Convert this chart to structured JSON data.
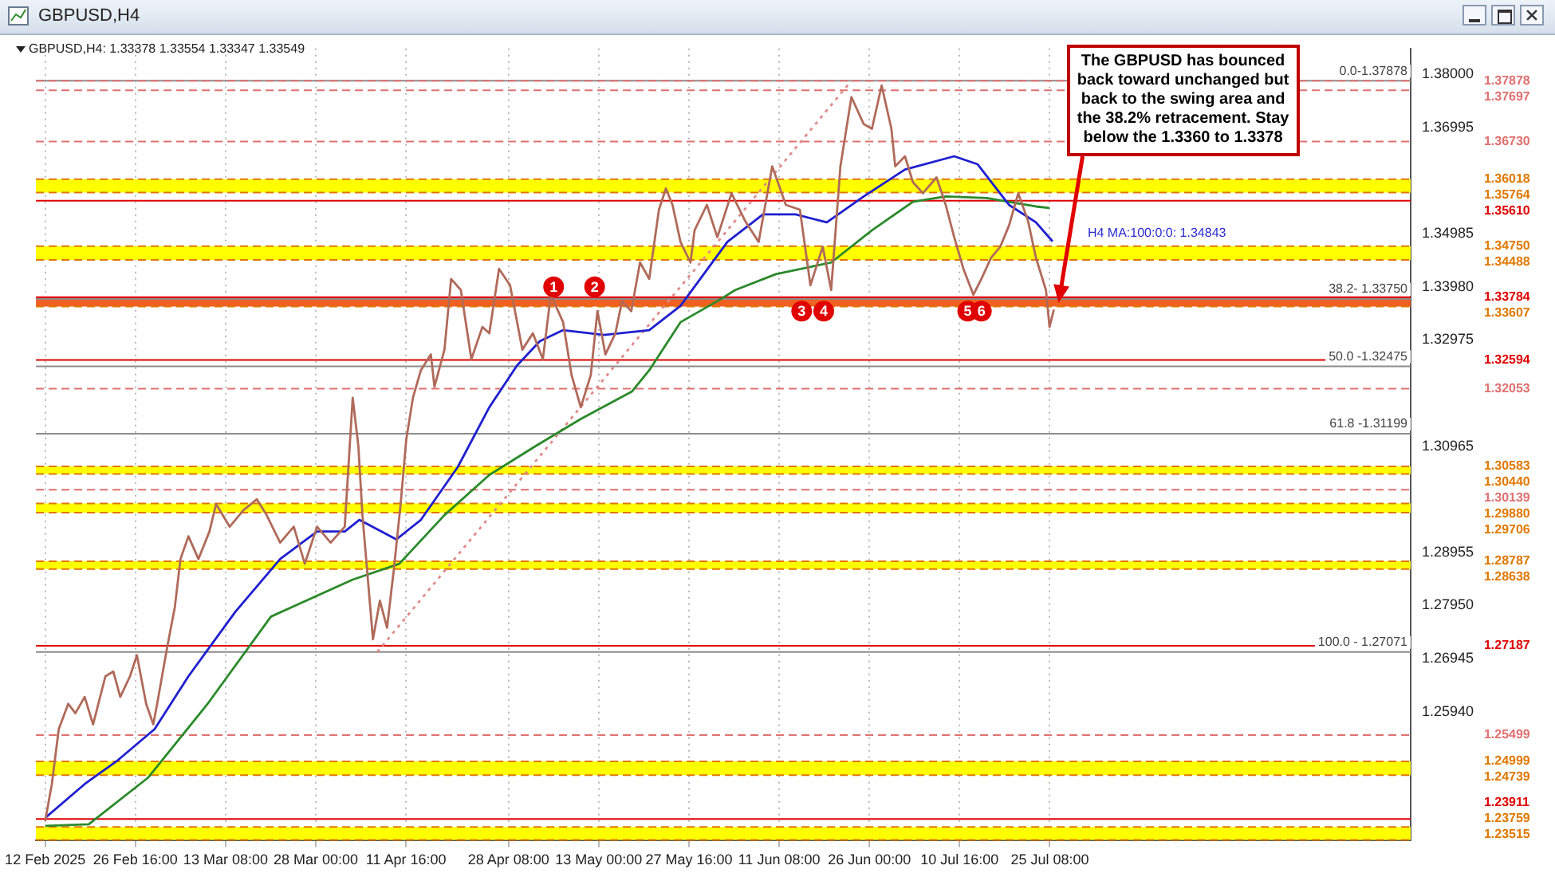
{
  "chart_data": {
    "type": "line",
    "title": "GBPUSD,H4",
    "subtitle": "GBPUSD,H4: 1.33378 1.33554 1.33347 1.33549",
    "marker": "none",
    "grid": "x",
    "legend": false,
    "xlim": [
      "2025-02-10T12:00",
      "2025-09-22T00:00"
    ],
    "xticks": [
      {
        "value": "2025-02-12T00:00",
        "label": "12 Feb 2025"
      },
      {
        "value": "2025-02-26T16:00",
        "label": "26 Feb 16:00"
      },
      {
        "value": "2025-03-13T08:00",
        "label": "13 Mar 08:00"
      },
      {
        "value": "2025-03-28T00:00",
        "label": "28 Mar 00:00"
      },
      {
        "value": "2025-04-11T16:00",
        "label": "11 Apr 16:00"
      },
      {
        "value": "2025-04-28T08:00",
        "label": "28 Apr 08:00"
      },
      {
        "value": "2025-05-13T00:00",
        "label": "13 May 00:00"
      },
      {
        "value": "2025-05-27T16:00",
        "label": "27 May 16:00"
      },
      {
        "value": "2025-06-11T08:00",
        "label": "11 Jun 08:00"
      },
      {
        "value": "2025-06-26T00:00",
        "label": "26 Jun 00:00"
      },
      {
        "value": "2025-07-10T16:00",
        "label": "10 Jul 16:00"
      },
      {
        "value": "2025-07-25T08:00",
        "label": "25 Jul 08:00"
      }
    ],
    "ylim": [
      1.235,
      1.3849
    ],
    "yticks": [
      {
        "value": 1.38,
        "label": "1.38000"
      },
      {
        "value": 1.36995,
        "label": "1.36995"
      },
      {
        "value": 1.34985,
        "label": "1.34985"
      },
      {
        "value": 1.3398,
        "label": "1.33980"
      },
      {
        "value": 1.32975,
        "label": "1.32975"
      },
      {
        "value": 1.30965,
        "label": "1.30965"
      },
      {
        "value": 1.28955,
        "label": "1.28955"
      },
      {
        "value": 1.2795,
        "label": "1.27950"
      },
      {
        "value": 1.26945,
        "label": "1.26945"
      },
      {
        "value": 1.2594,
        "label": "1.25940"
      }
    ],
    "series": [
      {
        "color": "#b06a5a",
        "x": [
          "2025-02-12T00:00",
          "2025-02-13T02:00",
          "2025-02-14T05:00",
          "2025-02-15T18:00",
          "2025-02-16T22:00",
          "2025-02-18T10:00",
          "2025-02-19T19:00",
          "2025-02-21T19:00",
          "2025-02-23T02:00",
          "2025-02-24T05:00",
          "2025-02-25T19:00",
          "2025-02-26T22:00",
          "2025-02-28T10:00",
          "2025-03-01T14:00",
          "2025-03-02T05:00",
          "2025-03-03T19:00",
          "2025-03-05T02:00",
          "2025-03-06T00:00",
          "2025-03-07T07:00",
          "2025-03-08T22:00",
          "2025-03-10T17:00",
          "2025-03-11T19:00",
          "2025-03-14T00:00",
          "2025-03-16T05:00",
          "2025-03-18T10:00",
          "2025-03-20T00:00",
          "2025-03-22T05:00",
          "2025-03-24T10:00",
          "2025-03-26T05:00",
          "2025-03-28T05:00",
          "2025-03-30T10:00",
          "2025-04-01T17:00",
          "2025-04-03T00:00",
          "2025-04-03T22:00",
          "2025-04-04T14:00",
          "2025-04-06T07:00",
          "2025-04-07T10:00",
          "2025-04-08T14:00",
          "2025-04-09T17:00",
          "2025-04-10T19:00",
          "2025-04-11T17:00",
          "2025-04-12T19:00",
          "2025-04-14T02:00",
          "2025-04-15T17:00",
          "2025-04-16T07:00",
          "2025-04-17T22:00",
          "2025-04-19T00:00",
          "2025-04-20T14:00",
          "2025-04-22T07:00",
          "2025-04-24T02:00",
          "2025-04-25T05:00",
          "2025-04-26T19:00",
          "2025-04-28T14:00",
          "2025-04-30T14:00",
          "2025-05-02T07:00",
          "2025-05-03T22:00",
          "2025-05-05T05:00",
          "2025-05-07T05:00",
          "2025-05-08T14:00",
          "2025-05-10T02:00",
          "2025-05-11T17:00",
          "2025-05-12T19:00",
          "2025-05-14T02:00",
          "2025-05-15T17:00",
          "2025-05-16T19:00",
          "2025-05-18T07:00",
          "2025-05-19T17:00",
          "2025-05-21T05:00",
          "2025-05-22T19:00",
          "2025-05-23T22:00",
          "2025-05-25T00:00",
          "2025-05-26T07:00",
          "2025-05-27T22:00",
          "2025-05-28T14:00",
          "2025-05-30T14:00",
          "2025-05-31T22:00",
          "2025-06-01T07:00",
          "2025-06-03T14:00",
          "2025-06-05T19:00",
          "2025-06-08T00:00",
          "2025-06-10T05:00",
          "2025-06-12T10:00",
          "2025-06-14T17:00",
          "2025-06-16T10:00",
          "2025-06-18T10:00",
          "2025-06-19T19:00",
          "2025-06-21T07:00",
          "2025-06-23T02:00",
          "2025-06-25T02:00",
          "2025-06-26T10:00",
          "2025-06-28T00:00",
          "2025-06-29T14:00",
          "2025-06-30T05:00",
          "2025-07-01T19:00",
          "2025-07-03T02:00",
          "2025-07-04T17:00",
          "2025-07-06T22:00",
          "2025-07-08T10:00",
          "2025-07-09T19:00",
          "2025-07-11T07:00",
          "2025-07-12T22:00",
          "2025-07-14T05:00",
          "2025-07-15T19:00",
          "2025-07-17T07:00",
          "2025-07-18T17:00",
          "2025-07-20T05:00",
          "2025-07-21T19:00",
          "2025-07-23T02:00",
          "2025-07-24T17:00",
          "2025-07-25T07:00",
          "2025-07-26T00:00"
        ],
        "values": [
          1.2387,
          1.2457,
          1.2561,
          1.2609,
          1.2591,
          1.2622,
          1.257,
          1.2661,
          1.267,
          1.2622,
          1.2661,
          1.2701,
          1.2609,
          1.257,
          1.2609,
          1.2713,
          1.2792,
          1.2883,
          1.2926,
          1.2883,
          1.2935,
          1.2987,
          1.2944,
          1.2975,
          1.2996,
          1.2966,
          1.2914,
          1.2944,
          1.2874,
          1.2944,
          1.2914,
          1.2944,
          1.3188,
          1.3097,
          1.2966,
          1.2731,
          1.2804,
          1.2753,
          1.2865,
          1.2987,
          1.3109,
          1.3188,
          1.324,
          1.327,
          1.3209,
          1.3279,
          1.3413,
          1.3392,
          1.3261,
          1.3322,
          1.331,
          1.3432,
          1.3401,
          1.3279,
          1.331,
          1.3261,
          1.3383,
          1.3331,
          1.3231,
          1.317,
          1.3231,
          1.3352,
          1.327,
          1.331,
          1.3371,
          1.3352,
          1.3444,
          1.3413,
          1.3544,
          1.3584,
          1.3553,
          1.3483,
          1.3444,
          1.3505,
          1.3553,
          1.3505,
          1.3492,
          1.3575,
          1.3523,
          1.3483,
          1.3626,
          1.3553,
          1.3544,
          1.3401,
          1.3474,
          1.3392,
          1.3626,
          1.3757,
          1.3706,
          1.3697,
          1.3779,
          1.3697,
          1.3626,
          1.3645,
          1.3596,
          1.3575,
          1.3605,
          1.3553,
          1.3492,
          1.3432,
          1.3383,
          1.3413,
          1.3453,
          1.3474,
          1.3514,
          1.3575,
          1.3523,
          1.3453,
          1.3392,
          1.3322,
          1.3355
        ]
      },
      {
        "color": "#1f1fd0",
        "x": [
          "2025-02-12T00:00",
          "2025-02-18T10:00",
          "2025-02-23T14:00",
          "2025-03-01T19:00",
          "2025-03-07T07:00",
          "2025-03-14T22:00",
          "2025-03-22T05:00",
          "2025-03-28T05:00",
          "2025-04-01T17:00",
          "2025-04-04T02:00",
          "2025-04-10T02:00",
          "2025-04-14T02:00",
          "2025-04-20T02:00",
          "2025-04-25T05:00",
          "2025-04-29T17:00",
          "2025-05-03T10:00",
          "2025-05-07T05:00",
          "2025-05-13T22:00",
          "2025-05-21T05:00",
          "2025-05-26T07:00",
          "2025-06-02T22:00",
          "2025-06-08T17:00",
          "2025-06-14T00:00",
          "2025-06-19T02:00",
          "2025-06-25T02:00",
          "2025-07-01T19:00",
          "2025-07-09T19:00",
          "2025-07-13T14:00",
          "2025-07-18T17:00",
          "2025-07-23T02:00",
          "2025-07-25T19:00"
        ],
        "values": [
          1.2393,
          1.2457,
          1.25,
          1.2561,
          1.2661,
          1.2783,
          1.2883,
          1.2935,
          1.2935,
          1.2957,
          1.292,
          1.2957,
          1.3057,
          1.317,
          1.3249,
          1.3295,
          1.3316,
          1.3307,
          1.3316,
          1.3362,
          1.3483,
          1.3535,
          1.3535,
          1.352,
          1.3569,
          1.362,
          1.3645,
          1.363,
          1.3553,
          1.352,
          1.3484
        ]
      },
      {
        "color": "#2a8a2a",
        "x": [
          "2025-02-12T00:00",
          "2025-02-19T02:00",
          "2025-02-28T17:00",
          "2025-03-10T10:00",
          "2025-03-20T17:00",
          "2025-04-03T00:00",
          "2025-04-10T14:00",
          "2025-04-17T22:00",
          "2025-04-25T05:00",
          "2025-05-02T19:00",
          "2025-05-10T02:00",
          "2025-05-18T10:00",
          "2025-05-21T05:00",
          "2025-05-26T07:00",
          "2025-06-01T07:00",
          "2025-06-04T05:00",
          "2025-06-10T19:00",
          "2025-06-19T19:00",
          "2025-06-26T10:00",
          "2025-07-03T02:00",
          "2025-07-08T10:00",
          "2025-07-15T02:00",
          "2025-07-23T02:00",
          "2025-07-25T07:00"
        ],
        "values": [
          1.2378,
          1.2381,
          1.2469,
          1.2609,
          1.2774,
          1.2844,
          1.2874,
          1.2966,
          1.3042,
          1.3097,
          1.3148,
          1.32,
          1.324,
          1.3331,
          1.3371,
          1.3392,
          1.3422,
          1.3444,
          1.3505,
          1.3559,
          1.3569,
          1.3566,
          1.355,
          1.3547
        ]
      },
      {
        "color": "#e08a8a",
        "line_style": "dotted",
        "x": [
          "2025-04-07T00:00",
          "2025-06-23T02:00"
        ],
        "values": [
          1.2707,
          1.3788
        ]
      }
    ],
    "bands": [
      {
        "axis": "y",
        "from": 1.35764,
        "to": 1.36018,
        "color": "#ffff00"
      },
      {
        "axis": "y",
        "from": 1.34488,
        "to": 1.3475,
        "color": "#ffff00"
      },
      {
        "axis": "y",
        "from": 1.33607,
        "to": 1.33784,
        "color": "#f06020"
      },
      {
        "axis": "y",
        "from": 1.3044,
        "to": 1.30583,
        "color": "#ffff00"
      },
      {
        "axis": "y",
        "from": 1.29706,
        "to": 1.2988,
        "color": "#ffff00"
      },
      {
        "axis": "y",
        "from": 1.28638,
        "to": 1.28787,
        "color": "#ffff00"
      },
      {
        "axis": "y",
        "from": 1.24739,
        "to": 1.24999,
        "color": "#ffff00"
      },
      {
        "axis": "y",
        "from": 1.23515,
        "to": 1.23759,
        "color": "#ffff00"
      }
    ],
    "ref_lines": [
      {
        "axis": "y",
        "value": 1.37878,
        "color": "#8c8c8c",
        "line_style": "solid"
      },
      {
        "axis": "y",
        "value": 1.3375,
        "color": "#8c8c8c",
        "line_style": "solid"
      },
      {
        "axis": "y",
        "value": 1.32475,
        "color": "#8c8c8c",
        "line_style": "solid"
      },
      {
        "axis": "y",
        "value": 1.31199,
        "color": "#8c8c8c",
        "line_style": "solid"
      },
      {
        "axis": "y",
        "value": 1.27071,
        "color": "#8c8c8c",
        "line_style": "solid"
      },
      {
        "axis": "y",
        "value": 1.37878,
        "label": "1.37878",
        "color": "#e07070",
        "line_style": "dashed"
      },
      {
        "axis": "y",
        "value": 1.37697,
        "label": "1.37697",
        "color": "#e07070",
        "line_style": "dashed"
      },
      {
        "axis": "y",
        "value": 1.3673,
        "label": "1.36730",
        "color": "#e07070",
        "line_style": "dashed"
      },
      {
        "axis": "y",
        "value": 1.36018,
        "label": "1.36018",
        "color": "#e07800",
        "line_style": "dashed"
      },
      {
        "axis": "y",
        "value": 1.35764,
        "label": "1.35764",
        "color": "#e07800",
        "line_style": "dashed"
      },
      {
        "axis": "y",
        "value": 1.3561,
        "label": "1.35610",
        "color": "#e00000",
        "line_style": "solid"
      },
      {
        "axis": "y",
        "value": 1.3475,
        "label": "1.34750",
        "color": "#e07800",
        "line_style": "dashed"
      },
      {
        "axis": "y",
        "value": 1.34488,
        "label": "1.34488",
        "color": "#e07800",
        "line_style": "dashed"
      },
      {
        "axis": "y",
        "value": 1.33784,
        "label": "1.33784",
        "color": "#e00000",
        "line_style": "solid"
      },
      {
        "axis": "y",
        "value": 1.33607,
        "label": "1.33607",
        "color": "#e07800",
        "line_style": "dashed"
      },
      {
        "axis": "y",
        "value": 1.32594,
        "label": "1.32594",
        "color": "#e00000",
        "line_style": "solid"
      },
      {
        "axis": "y",
        "value": 1.32053,
        "label": "1.32053",
        "color": "#e07070",
        "line_style": "dashed"
      },
      {
        "axis": "y",
        "value": 1.30583,
        "label": "1.30583",
        "color": "#e07800",
        "line_style": "dashed"
      },
      {
        "axis": "y",
        "value": 1.3044,
        "label": "1.30440",
        "color": "#e07800",
        "line_style": "dashed"
      },
      {
        "axis": "y",
        "value": 1.30139,
        "label": "1.30139",
        "color": "#e07070",
        "line_style": "dashed"
      },
      {
        "axis": "y",
        "value": 1.2988,
        "label": "1.29880",
        "color": "#e07800",
        "line_style": "dashed"
      },
      {
        "axis": "y",
        "value": 1.29706,
        "label": "1.29706",
        "color": "#e07800",
        "line_style": "dashed"
      },
      {
        "axis": "y",
        "value": 1.28787,
        "label": "1.28787",
        "color": "#e07800",
        "line_style": "dashed"
      },
      {
        "axis": "y",
        "value": 1.28638,
        "label": "1.28638",
        "color": "#e07800",
        "line_style": "dashed"
      },
      {
        "axis": "y",
        "value": 1.27187,
        "label": "1.27187",
        "color": "#e00000",
        "line_style": "solid"
      },
      {
        "axis": "y",
        "value": 1.25499,
        "label": "1.25499",
        "color": "#e07070",
        "line_style": "dashed"
      },
      {
        "axis": "y",
        "value": 1.24999,
        "label": "1.24999",
        "color": "#e07800",
        "line_style": "dashed"
      },
      {
        "axis": "y",
        "value": 1.24739,
        "label": "1.24739",
        "color": "#e07800",
        "line_style": "dashed"
      },
      {
        "axis": "y",
        "value": 1.23911,
        "label": "1.23911",
        "color": "#e00000",
        "line_style": "solid"
      },
      {
        "axis": "y",
        "value": 1.23759,
        "label": "1.23759",
        "color": "#e07800",
        "line_style": "dashed"
      },
      {
        "axis": "y",
        "value": 1.23515,
        "label": "1.23515",
        "color": "#e07800",
        "line_style": "dashed"
      }
    ],
    "annotations": [
      {
        "text": "The GBPUSD has bounced back toward unchanged but back to the swing area and the 38.2% retracement. Stay below the 1.3360 to 1.3378",
        "x": "2025-07-26T00:00",
        "y": 1.3368
      },
      {
        "text": "H4 MA:100:0:0: 1.34843",
        "x": "2025-07-25T19:00",
        "y": 1.34843
      },
      {
        "text": "1",
        "x": "2025-05-05T16:00",
        "y": 1.3398
      },
      {
        "text": "2",
        "x": "2025-05-12T08:00",
        "y": 1.3398
      },
      {
        "text": "3",
        "x": "2025-06-15T00:00",
        "y": 1.3352
      },
      {
        "text": "4",
        "x": "2025-06-18T14:00",
        "y": 1.3352
      },
      {
        "text": "5",
        "x": "2025-07-12T00:00",
        "y": 1.3352
      },
      {
        "text": "6",
        "x": "2025-07-14T05:00",
        "y": 1.3352
      },
      {
        "text": "0.0-1.37878",
        "y": 1.37878
      },
      {
        "text": "38.2- 1.33750",
        "y": 1.3375
      },
      {
        "text": "50.0 -1.32475",
        "y": 1.32475
      },
      {
        "text": "61.8 -1.31199",
        "y": 1.31199
      },
      {
        "text": "100.0 - 1.27071",
        "y": 1.27071
      }
    ]
  }
}
